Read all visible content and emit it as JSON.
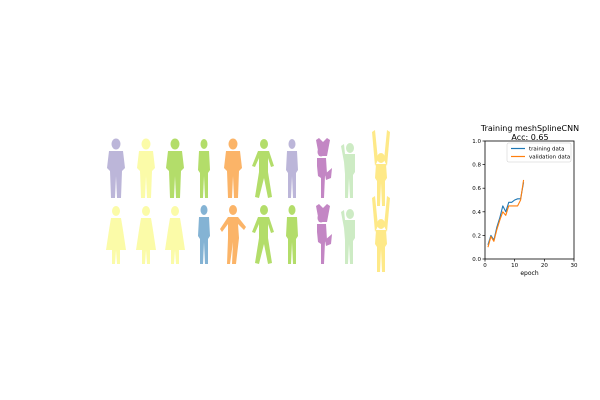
{
  "silhouettes": {
    "rows": [
      [
        {
          "pose": "standing",
          "color": "#bcb6d9"
        },
        {
          "pose": "standing",
          "color": "#fbfba8"
        },
        {
          "pose": "standing",
          "color": "#b3dd6a"
        },
        {
          "pose": "standing-slim",
          "color": "#b3dd6a"
        },
        {
          "pose": "standing",
          "color": "#fbb468"
        },
        {
          "pose": "walking",
          "color": "#b3dd6a"
        },
        {
          "pose": "standing-slim",
          "color": "#bcb6d9"
        },
        {
          "pose": "yoga",
          "color": "#c386c4"
        },
        {
          "pose": "arm-raised",
          "color": "#cdebc4"
        },
        {
          "pose": "arms-up",
          "color": "#fee988"
        }
      ],
      [
        {
          "pose": "dress",
          "color": "#fbfba8"
        },
        {
          "pose": "dress",
          "color": "#fbfba8"
        },
        {
          "pose": "dress",
          "color": "#fbfba8"
        },
        {
          "pose": "standing-slim",
          "color": "#84b3d4"
        },
        {
          "pose": "arms-out",
          "color": "#fbb468"
        },
        {
          "pose": "walking",
          "color": "#b3dd6a"
        },
        {
          "pose": "standing-slim",
          "color": "#b3dd6a"
        },
        {
          "pose": "yoga",
          "color": "#c386c4"
        },
        {
          "pose": "arm-raised",
          "color": "#cdebc4"
        },
        {
          "pose": "arms-up",
          "color": "#fee988"
        }
      ]
    ]
  },
  "chart_data": {
    "type": "line",
    "title": "Training meshSplineCNN",
    "subtitle": "Acc: 0.65",
    "xlabel": "epoch",
    "ylabel": "",
    "xlim": [
      0,
      30
    ],
    "ylim": [
      0,
      1.0
    ],
    "xticks": [
      0,
      10,
      20,
      30
    ],
    "yticks": [
      0.0,
      0.2,
      0.4,
      0.6,
      0.8,
      1.0
    ],
    "grid": false,
    "legend_position": "top-right",
    "series": [
      {
        "name": "training data",
        "color": "#1f77b4",
        "x": [
          1,
          2,
          3,
          4,
          5,
          6,
          7,
          8,
          9,
          10,
          11,
          12,
          13
        ],
        "y": [
          0.12,
          0.2,
          0.16,
          0.27,
          0.35,
          0.45,
          0.4,
          0.48,
          0.48,
          0.5,
          0.51,
          0.51,
          0.65
        ]
      },
      {
        "name": "validation data",
        "color": "#ff7f0e",
        "x": [
          1,
          2,
          3,
          4,
          5,
          6,
          7,
          8,
          9,
          10,
          11,
          12,
          13
        ],
        "y": [
          0.1,
          0.19,
          0.15,
          0.25,
          0.33,
          0.4,
          0.37,
          0.45,
          0.45,
          0.45,
          0.45,
          0.5,
          0.67
        ]
      }
    ]
  }
}
